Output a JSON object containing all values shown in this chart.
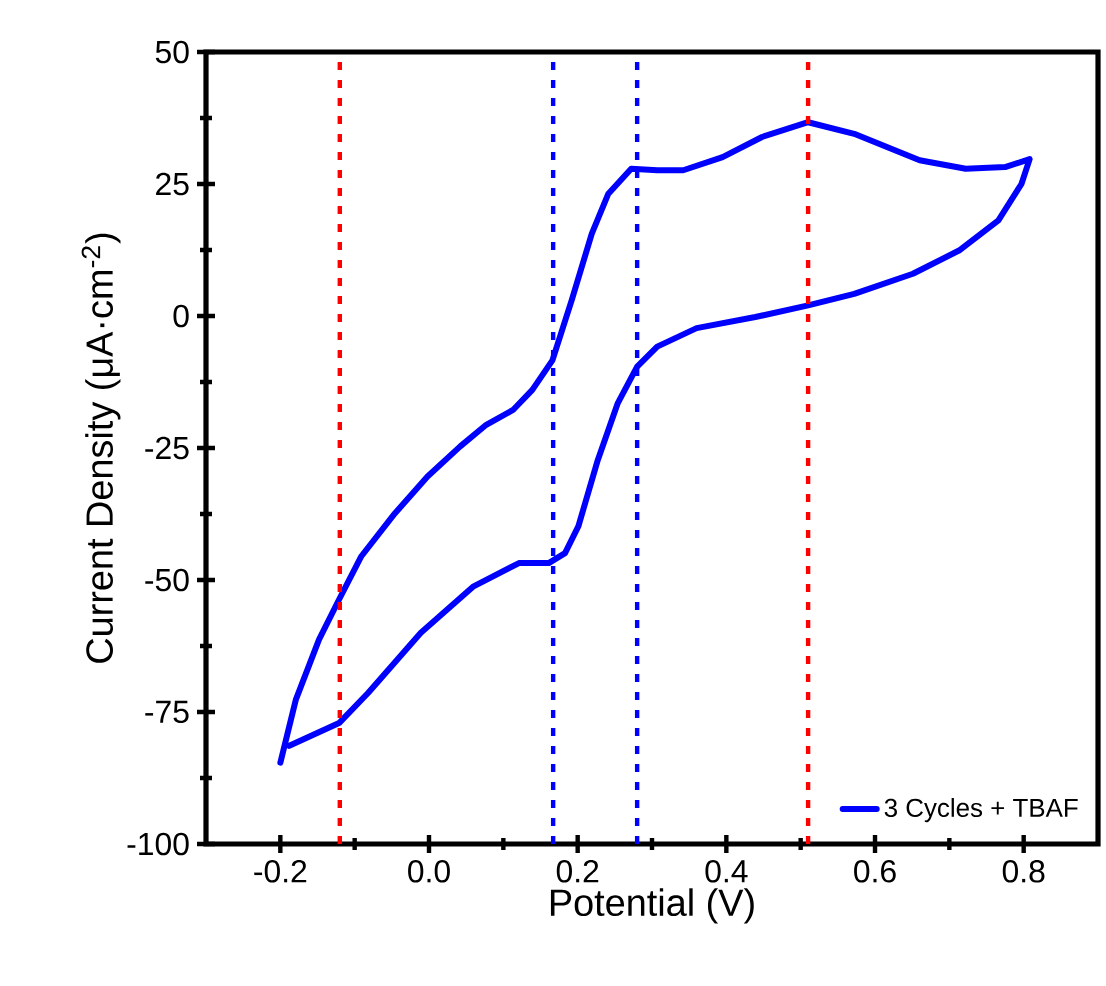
{
  "chart_data": {
    "type": "line",
    "xlabel": "Potential (V)",
    "ylabel": "Current Density (μA·cm$^{-2}$)",
    "xlim": [
      -0.3,
      0.9
    ],
    "ylim": [
      -100,
      50
    ],
    "xticks": [
      -0.2,
      {
        "value": 0,
        "label": "0.0"
      },
      0.2,
      0.4,
      0.6,
      0.8
    ],
    "yticks": [
      -100,
      -75,
      -50,
      -25,
      0,
      25,
      50
    ],
    "legend": "bottom right",
    "grid": false,
    "marker": "none",
    "line_style": "solid",
    "series": [
      {
        "name": "3 Cycles + TBAF",
        "color": "#0000ff",
        "x": [
          -0.2,
          -0.179,
          -0.148,
          -0.121,
          -0.091,
          -0.046,
          -0.002,
          0.042,
          0.077,
          0.113,
          0.139,
          0.166,
          0.192,
          0.219,
          0.241,
          0.272,
          0.307,
          0.342,
          0.395,
          0.448,
          0.51,
          0.572,
          0.66,
          0.722,
          0.775,
          0.808,
          0.797,
          0.766,
          0.713,
          0.651,
          0.572,
          0.51,
          0.439,
          0.36,
          0.307,
          0.28,
          0.254,
          0.227,
          0.201,
          0.183,
          0.161,
          0.121,
          0.06,
          -0.011,
          -0.082,
          -0.121,
          -0.188
        ],
        "values": [
          -84.6,
          -72.6,
          -61.3,
          -53.7,
          -45.5,
          -37.4,
          -30.4,
          -24.7,
          -20.6,
          -17.8,
          -14.0,
          -8.4,
          3.0,
          15.6,
          23.1,
          27.9,
          27.6,
          27.6,
          30.1,
          33.9,
          36.7,
          34.5,
          29.5,
          27.9,
          28.2,
          29.7,
          25.0,
          18.1,
          12.4,
          8.0,
          4.2,
          2.0,
          -0.2,
          -2.3,
          -5.8,
          -9.6,
          -16.5,
          -27.3,
          -39.8,
          -44.9,
          -46.8,
          -46.8,
          -51.2,
          -60.0,
          -71.4,
          -77.1,
          -81.4
        ]
      }
    ],
    "ref_lines": [
      {
        "axis": "x",
        "value": -0.12,
        "color": "#ff0000",
        "line_style": "dotted"
      },
      {
        "axis": "x",
        "value": 0.167,
        "color": "#0000ff",
        "line_style": "dotted"
      },
      {
        "axis": "x",
        "value": 0.28,
        "color": "#0000ff",
        "line_style": "dotted"
      },
      {
        "axis": "x",
        "value": 0.51,
        "color": "#ff0000",
        "line_style": "dotted"
      }
    ]
  }
}
